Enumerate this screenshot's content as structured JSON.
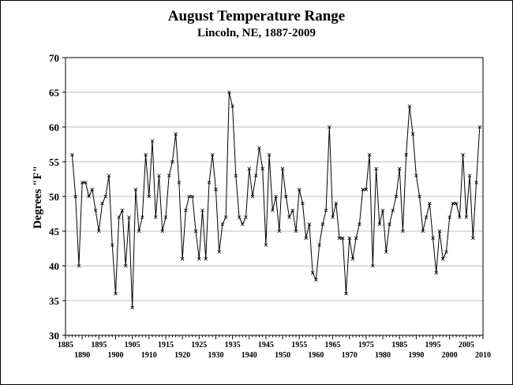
{
  "chart_data": {
    "type": "line",
    "title": "August Temperature Range",
    "subtitle": "Lincoln, NE, 1887-2009",
    "xlabel": "",
    "ylabel": "Degrees \"F\"",
    "xlim": [
      1885,
      2010
    ],
    "ylim": [
      30,
      70
    ],
    "yticks": [
      30,
      35,
      40,
      45,
      50,
      55,
      60,
      65,
      70
    ],
    "xticks_upper": [
      1885,
      1895,
      1905,
      1915,
      1925,
      1935,
      1945,
      1955,
      1965,
      1975,
      1985,
      1995,
      2005
    ],
    "xticks_lower": [
      1890,
      1900,
      1910,
      1920,
      1930,
      1940,
      1950,
      1960,
      1970,
      1980,
      1990,
      2000,
      2010
    ],
    "grid": "horizontal",
    "legend": "none",
    "line_color": "#000000",
    "series": [
      {
        "x": [
          1887,
          1888,
          1889,
          1890,
          1891,
          1892,
          1893,
          1894,
          1895,
          1896,
          1897,
          1898,
          1899,
          1900,
          1901,
          1902,
          1903,
          1904,
          1905,
          1906,
          1907,
          1908,
          1909,
          1910,
          1911,
          1912,
          1913,
          1914,
          1915,
          1916,
          1917,
          1918,
          1919,
          1920,
          1921,
          1922,
          1923,
          1924,
          1925,
          1926,
          1927,
          1928,
          1929,
          1930,
          1931,
          1932,
          1933,
          1934,
          1935,
          1936,
          1937,
          1938,
          1939,
          1940,
          1941,
          1942,
          1943,
          1944,
          1945,
          1946,
          1947,
          1948,
          1949,
          1950,
          1951,
          1952,
          1953,
          1954,
          1955,
          1956,
          1957,
          1958,
          1959,
          1960,
          1961,
          1962,
          1963,
          1964,
          1965,
          1966,
          1967,
          1968,
          1969,
          1970,
          1971,
          1972,
          1973,
          1974,
          1975,
          1976,
          1977,
          1978,
          1979,
          1980,
          1981,
          1982,
          1983,
          1984,
          1985,
          1986,
          1987,
          1988,
          1989,
          1990,
          1991,
          1992,
          1993,
          1994,
          1995,
          1996,
          1997,
          1998,
          1999,
          2000,
          2001,
          2002,
          2003,
          2004,
          2005,
          2006,
          2007,
          2008,
          2009
        ],
        "values": [
          56,
          50,
          40,
          52,
          52,
          50,
          51,
          48,
          45,
          49,
          50,
          53,
          43,
          36,
          47,
          48,
          40,
          47,
          34,
          51,
          45,
          47,
          56,
          50,
          58,
          47,
          53,
          45,
          47,
          53,
          55,
          59,
          52,
          41,
          48,
          50,
          50,
          45,
          41,
          48,
          41,
          52,
          56,
          51,
          42,
          46,
          47,
          65,
          63,
          53,
          47,
          46,
          47,
          54,
          50,
          53,
          57,
          54,
          43,
          56,
          48,
          50,
          45,
          54,
          50,
          47,
          48,
          45,
          51,
          49,
          44,
          46,
          39,
          38,
          43,
          46,
          48,
          60,
          47,
          49,
          44,
          44,
          36,
          44,
          41,
          44,
          46,
          51,
          51,
          56,
          40,
          54,
          46,
          48,
          42,
          46,
          48,
          50,
          54,
          45,
          56,
          63,
          59,
          53,
          50,
          45,
          47,
          49,
          44,
          39,
          45,
          41,
          42,
          47,
          49,
          49,
          47,
          56,
          47,
          53,
          44,
          52,
          60
        ]
      }
    ]
  }
}
